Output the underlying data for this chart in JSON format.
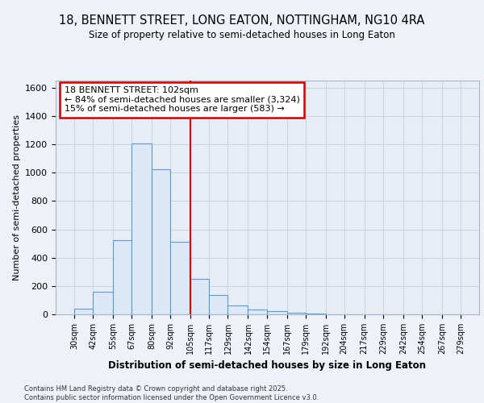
{
  "title": "18, BENNETT STREET, LONG EATON, NOTTINGHAM, NG10 4RA",
  "subtitle": "Size of property relative to semi-detached houses in Long Eaton",
  "xlabel": "Distribution of semi-detached houses by size in Long Eaton",
  "ylabel": "Number of semi-detached properties",
  "footnote": "Contains HM Land Registry data © Crown copyright and database right 2025.\nContains public sector information licensed under the Open Government Licence v3.0.",
  "annotation_title": "18 BENNETT STREET: 102sqm",
  "annotation_line1": "← 84% of semi-detached houses are smaller (3,324)",
  "annotation_line2": "15% of semi-detached houses are larger (583) →",
  "bar_edges": [
    30,
    42,
    55,
    67,
    80,
    92,
    105,
    117,
    129,
    142,
    154,
    167,
    179,
    192,
    204,
    217,
    229,
    242,
    254,
    267,
    279
  ],
  "bar_heights": [
    40,
    160,
    525,
    1205,
    1025,
    510,
    248,
    135,
    65,
    35,
    20,
    10,
    5,
    2,
    0,
    0,
    0,
    0,
    0,
    0
  ],
  "bar_color": "#dce8f5",
  "bar_edgecolor": "#5b9bd5",
  "vline_x": 105,
  "vline_color": "#cc0000",
  "annotation_box_color": "#cc0000",
  "ylim": [
    0,
    1650
  ],
  "xlim": [
    18,
    291
  ],
  "yticks": [
    0,
    200,
    400,
    600,
    800,
    1000,
    1200,
    1400,
    1600
  ],
  "background_color": "#eef2f8",
  "plot_background": "#e8edf5"
}
